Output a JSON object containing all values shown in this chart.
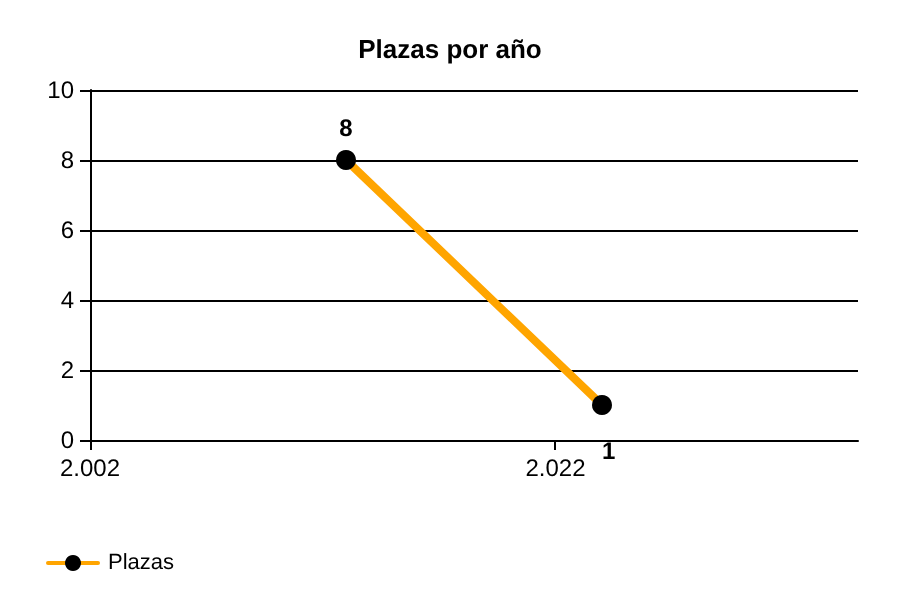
{
  "chart_data": {
    "type": "line",
    "title": "Plazas por año",
    "x": [
      2013,
      2024
    ],
    "series": [
      {
        "name": "Plazas",
        "color": "#ffa500",
        "values": [
          8,
          1
        ]
      }
    ],
    "xlim": [
      2002,
      2035
    ],
    "xticks": [
      {
        "value": 2002,
        "label": "2.002"
      },
      {
        "value": 2022,
        "label": "2.022"
      }
    ],
    "ylim": [
      0,
      10
    ],
    "yticks": [
      0,
      2,
      4,
      6,
      8,
      10
    ],
    "grid": "y",
    "legend": "bottom left",
    "marker": "circle",
    "data_labels": true
  }
}
